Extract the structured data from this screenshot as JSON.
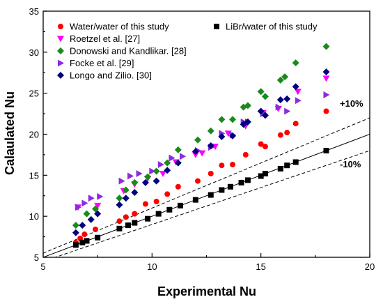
{
  "chart_data": {
    "type": "scatter",
    "title": "",
    "xlabel": "Experimental Nu",
    "ylabel": "Calaulated Nu",
    "xlim": [
      5,
      20
    ],
    "ylim": [
      5,
      35
    ],
    "xticks": [
      5,
      10,
      15,
      20
    ],
    "yticks": [
      5,
      10,
      15,
      20,
      25,
      30,
      35
    ],
    "grid": false,
    "legend_position": "top",
    "annotations": [
      {
        "text": "+10%",
        "x": 18.4,
        "y": 22.8
      },
      {
        "text": "-10%",
        "x": 18.4,
        "y": 17.6
      }
    ],
    "reference_lines": [
      {
        "name": "parity",
        "slope": 1.0,
        "style": "solid"
      },
      {
        "name": "+10%",
        "slope": 1.1,
        "style": "dashed"
      },
      {
        "name": "-10%",
        "slope": 0.9,
        "style": "dashed"
      }
    ],
    "series": [
      {
        "name": "Water/water of this study",
        "marker": "circle",
        "color": "#ff0000",
        "points": [
          [
            6.5,
            6.8
          ],
          [
            6.7,
            7.3
          ],
          [
            6.9,
            7.8
          ],
          [
            7.4,
            8.4
          ],
          [
            8.5,
            9.4
          ],
          [
            8.8,
            9.9
          ],
          [
            9.2,
            10.3
          ],
          [
            9.7,
            11.5
          ],
          [
            10.2,
            11.8
          ],
          [
            10.7,
            12.7
          ],
          [
            11.2,
            13.6
          ],
          [
            12.1,
            14.3
          ],
          [
            12.7,
            15.2
          ],
          [
            13.2,
            16.2
          ],
          [
            13.7,
            16.3
          ],
          [
            14.3,
            17.5
          ],
          [
            15.0,
            18.8
          ],
          [
            15.2,
            18.5
          ],
          [
            15.9,
            19.9
          ],
          [
            16.2,
            20.2
          ],
          [
            16.6,
            21.3
          ],
          [
            18.0,
            22.8
          ]
        ]
      },
      {
        "name": "Roetzel et al. [27]",
        "marker": "triangle-down",
        "color": "#ff00ff",
        "points": [
          [
            6.6,
            11.1
          ],
          [
            7.5,
            11.3
          ],
          [
            8.7,
            13.1
          ],
          [
            9.2,
            13.9
          ],
          [
            9.8,
            14.6
          ],
          [
            10.5,
            15.2
          ],
          [
            11.1,
            16.6
          ],
          [
            12.0,
            17.5
          ],
          [
            12.3,
            17.7
          ],
          [
            12.9,
            18.5
          ],
          [
            13.5,
            20.1
          ],
          [
            14.3,
            21.0
          ],
          [
            15.1,
            22.6
          ],
          [
            15.8,
            23.1
          ],
          [
            16.7,
            25.2
          ],
          [
            18.0,
            26.8
          ]
        ]
      },
      {
        "name": "Donowski and Kandlikar. [28]",
        "marker": "diamond",
        "color": "#1a8a1a",
        "points": [
          [
            6.5,
            8.9
          ],
          [
            7.0,
            10.3
          ],
          [
            7.4,
            10.9
          ],
          [
            8.5,
            12.2
          ],
          [
            8.8,
            13.2
          ],
          [
            9.2,
            14.1
          ],
          [
            9.8,
            14.8
          ],
          [
            10.2,
            15.5
          ],
          [
            10.7,
            16.5
          ],
          [
            11.2,
            18.1
          ],
          [
            12.1,
            19.3
          ],
          [
            12.7,
            20.4
          ],
          [
            13.2,
            21.8
          ],
          [
            13.7,
            21.8
          ],
          [
            14.2,
            23.3
          ],
          [
            14.4,
            23.5
          ],
          [
            15.0,
            25.2
          ],
          [
            15.2,
            24.6
          ],
          [
            15.9,
            26.6
          ],
          [
            16.1,
            27.0
          ],
          [
            16.6,
            28.7
          ],
          [
            18.0,
            30.7
          ]
        ]
      },
      {
        "name": "Focke et al. [29]",
        "marker": "triangle-right",
        "color": "#8a2be2",
        "points": [
          [
            6.6,
            11.1
          ],
          [
            6.9,
            11.6
          ],
          [
            7.2,
            12.2
          ],
          [
            7.6,
            12.4
          ],
          [
            8.6,
            14.3
          ],
          [
            9.0,
            14.9
          ],
          [
            9.4,
            15.2
          ],
          [
            10.0,
            15.5
          ],
          [
            10.4,
            16.3
          ],
          [
            10.9,
            17.1
          ],
          [
            11.4,
            17.3
          ],
          [
            12.1,
            18.0
          ],
          [
            12.7,
            18.4
          ],
          [
            13.2,
            20.1
          ],
          [
            13.7,
            19.9
          ],
          [
            14.2,
            21.5
          ],
          [
            14.4,
            21.5
          ],
          [
            15.1,
            22.5
          ],
          [
            15.8,
            23.3
          ],
          [
            16.2,
            22.8
          ],
          [
            16.7,
            24.1
          ],
          [
            18.0,
            24.8
          ]
        ]
      },
      {
        "name": "Longo and Zilio. [30]",
        "marker": "diamond",
        "color": "#000080",
        "points": [
          [
            6.5,
            8.0
          ],
          [
            6.8,
            8.9
          ],
          [
            7.2,
            9.6
          ],
          [
            7.5,
            10.3
          ],
          [
            8.5,
            11.4
          ],
          [
            8.8,
            12.2
          ],
          [
            9.2,
            12.9
          ],
          [
            9.7,
            14.1
          ],
          [
            10.2,
            14.3
          ],
          [
            10.7,
            15.6
          ],
          [
            11.2,
            16.5
          ],
          [
            12.0,
            17.9
          ],
          [
            12.7,
            18.6
          ],
          [
            13.2,
            19.7
          ],
          [
            13.7,
            19.8
          ],
          [
            14.2,
            21.2
          ],
          [
            14.4,
            21.5
          ],
          [
            15.0,
            22.8
          ],
          [
            15.2,
            22.3
          ],
          [
            15.9,
            24.2
          ],
          [
            16.2,
            24.3
          ],
          [
            16.6,
            25.8
          ],
          [
            18.0,
            27.6
          ]
        ]
      },
      {
        "name": "LiBr/water of this study",
        "marker": "square",
        "color": "#000000",
        "points": [
          [
            6.5,
            6.5
          ],
          [
            6.8,
            6.8
          ],
          [
            7.0,
            7.0
          ],
          [
            7.5,
            7.4
          ],
          [
            8.5,
            8.5
          ],
          [
            8.9,
            8.9
          ],
          [
            9.2,
            9.2
          ],
          [
            9.8,
            9.7
          ],
          [
            10.3,
            10.3
          ],
          [
            10.8,
            10.8
          ],
          [
            11.3,
            11.3
          ],
          [
            12.0,
            12.0
          ],
          [
            12.7,
            12.6
          ],
          [
            13.2,
            13.2
          ],
          [
            13.6,
            13.6
          ],
          [
            14.1,
            14.1
          ],
          [
            14.4,
            14.4
          ],
          [
            15.0,
            14.9
          ],
          [
            15.2,
            15.2
          ],
          [
            15.9,
            15.8
          ],
          [
            16.2,
            16.2
          ],
          [
            16.6,
            16.6
          ],
          [
            18.0,
            18.0
          ]
        ]
      }
    ]
  }
}
